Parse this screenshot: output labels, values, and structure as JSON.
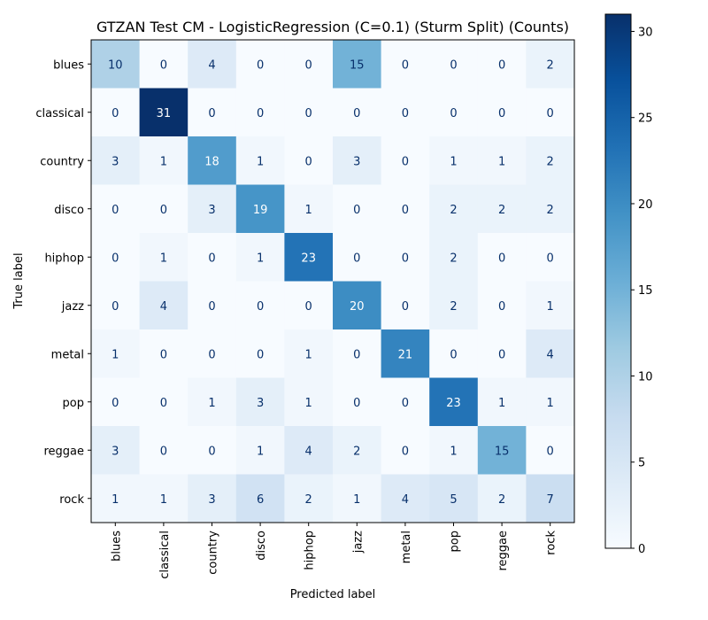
{
  "chart_data": {
    "type": "heatmap",
    "title": "GTZAN Test CM - LogisticRegression (C=0.1) (Sturm Split) (Counts)",
    "xlabel": "Predicted label",
    "ylabel": "True label",
    "x_categories": [
      "blues",
      "classical",
      "country",
      "disco",
      "hiphop",
      "jazz",
      "metal",
      "pop",
      "reggae",
      "rock"
    ],
    "y_categories": [
      "blues",
      "classical",
      "country",
      "disco",
      "hiphop",
      "jazz",
      "metal",
      "pop",
      "reggae",
      "rock"
    ],
    "matrix": [
      [
        10,
        0,
        4,
        0,
        0,
        15,
        0,
        0,
        0,
        2
      ],
      [
        0,
        31,
        0,
        0,
        0,
        0,
        0,
        0,
        0,
        0
      ],
      [
        3,
        1,
        18,
        1,
        0,
        3,
        0,
        1,
        1,
        2
      ],
      [
        0,
        0,
        3,
        19,
        1,
        0,
        0,
        2,
        2,
        2
      ],
      [
        0,
        1,
        0,
        1,
        23,
        0,
        0,
        2,
        0,
        0
      ],
      [
        0,
        4,
        0,
        0,
        0,
        20,
        0,
        2,
        0,
        1
      ],
      [
        1,
        0,
        0,
        0,
        1,
        0,
        21,
        0,
        0,
        4
      ],
      [
        0,
        0,
        1,
        3,
        1,
        0,
        0,
        23,
        1,
        1
      ],
      [
        3,
        0,
        0,
        1,
        4,
        2,
        0,
        1,
        15,
        0
      ],
      [
        1,
        1,
        3,
        6,
        2,
        1,
        4,
        5,
        2,
        7
      ]
    ],
    "colormap": "Blues",
    "colorbar": {
      "min": 0,
      "max": 31,
      "ticks": [
        0,
        5,
        10,
        15,
        20,
        25,
        30
      ]
    },
    "text_threshold": 15.5,
    "colors": {
      "text_dark": "#08306b",
      "text_light": "#ffffff"
    }
  }
}
